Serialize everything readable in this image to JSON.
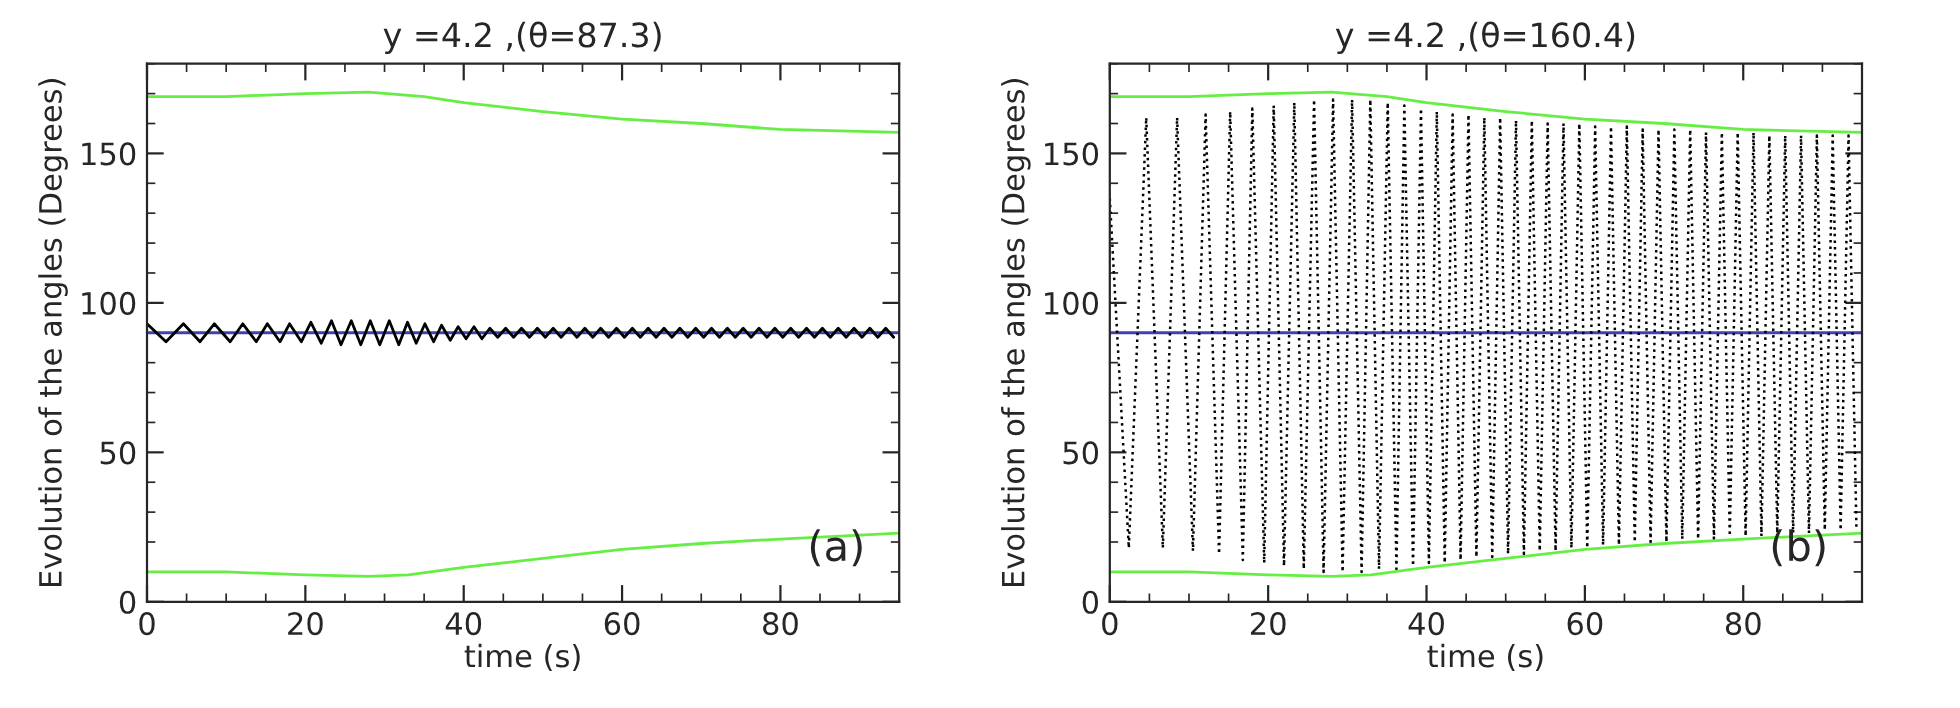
{
  "chart_data": [
    {
      "type": "line",
      "title": "y =4.2 ,(θ=87.3)",
      "xlabel": "time (s)",
      "ylabel": "Evolution of the angles (Degrees)",
      "xlim": [
        0,
        95
      ],
      "ylim": [
        0,
        180
      ],
      "xticks": [
        0,
        20,
        40,
        60,
        80
      ],
      "yticks": [
        0,
        50,
        100,
        150
      ],
      "grid": false,
      "marker": "none",
      "annotations": [
        "(a)"
      ],
      "ref_lines": [
        {
          "axis": "y",
          "value": 90,
          "color": "#4040b0"
        }
      ],
      "series": [
        {
          "color": "#66ee44",
          "x": [
            0,
            10,
            20,
            28,
            35,
            40,
            50,
            60,
            70,
            80,
            95
          ],
          "values": [
            169,
            169,
            170,
            170.5,
            169,
            167,
            164,
            161.5,
            160,
            158,
            157
          ]
        },
        {
          "color": "#66ee44",
          "x": [
            0,
            10,
            20,
            28,
            33,
            40,
            50,
            60,
            70,
            80,
            95
          ],
          "values": [
            10,
            10,
            9,
            8.5,
            9,
            11.5,
            14.5,
            17.5,
            19.5,
            21,
            23
          ]
        },
        {
          "color": "#000000",
          "line_style": "solid",
          "x": [
            0,
            2.4,
            4.6,
            6.7,
            8.5,
            10.5,
            12.1,
            13.8,
            15.2,
            16.8,
            18.0,
            19.5,
            20.7,
            22.0,
            23.3,
            24.5,
            25.8,
            27.0,
            28.2,
            29.4,
            30.6,
            31.8,
            32.9,
            34.0,
            35.1,
            36.2,
            37.2,
            38.3,
            39.3,
            40.3,
            41.3,
            42.3,
            43.3,
            44.3,
            45.3,
            46.3,
            47.3,
            48.3,
            49.3,
            50.3,
            51.3,
            52.3,
            53.3,
            54.3,
            55.3,
            56.3,
            57.3,
            58.3,
            59.3,
            60.3,
            61.3,
            62.3,
            63.3,
            64.3,
            65.3,
            66.3,
            67.3,
            68.3,
            69.3,
            70.3,
            71.3,
            72.3,
            73.3,
            74.3,
            75.3,
            76.3,
            77.3,
            78.3,
            79.3,
            80.3,
            81.3,
            82.3,
            83.3,
            84.3,
            85.3,
            86.3,
            87.3,
            88.3,
            89.3,
            90.3,
            91.3,
            92.3,
            93.3,
            94.3
          ],
          "values": [
            93,
            87,
            93,
            87,
            93,
            87,
            93,
            87,
            93,
            87,
            93,
            87,
            93.5,
            86.5,
            94,
            86,
            94,
            86,
            94,
            86,
            94,
            86,
            93.5,
            86.5,
            93,
            87,
            92.5,
            87.5,
            92,
            88,
            92,
            88,
            91.5,
            88.5,
            91.5,
            88.5,
            91.5,
            88.5,
            91.5,
            88.5,
            91.5,
            88.5,
            91.5,
            88.5,
            91.5,
            88.5,
            91.5,
            88.5,
            91.5,
            88.5,
            91.5,
            88.5,
            91.5,
            88.5,
            91.5,
            88.5,
            91.5,
            88.5,
            91.5,
            88.5,
            91.5,
            88.5,
            91.5,
            88.5,
            91.5,
            88.5,
            91.5,
            88.5,
            91.5,
            88.5,
            91.5,
            88.5,
            91.5,
            88.5,
            91.5,
            88.5,
            91.5,
            88.5,
            91.5,
            88.5,
            91.5,
            88.5,
            91.5,
            88.5
          ]
        }
      ]
    },
    {
      "type": "line",
      "title": "y =4.2 ,(θ=160.4)",
      "xlabel": "time (s)",
      "ylabel": "Evolution of the angles (Degrees)",
      "xlim": [
        0,
        95
      ],
      "ylim": [
        0,
        180
      ],
      "xticks": [
        0,
        20,
        40,
        60,
        80
      ],
      "yticks": [
        0,
        50,
        100,
        150
      ],
      "grid": false,
      "marker": "none",
      "annotations": [
        "(b)"
      ],
      "ref_lines": [
        {
          "axis": "y",
          "value": 90,
          "color": "#4040b0"
        }
      ],
      "series": [
        {
          "color": "#000000",
          "line_style": "dotted",
          "x": [
            0,
            2.4,
            4.6,
            6.7,
            8.5,
            10.5,
            12.1,
            13.8,
            15.2,
            16.8,
            18.0,
            19.5,
            20.7,
            22.0,
            23.3,
            24.5,
            25.8,
            27.0,
            28.2,
            29.4,
            30.6,
            31.8,
            32.9,
            34.0,
            35.1,
            36.2,
            37.2,
            38.3,
            39.3,
            40.3,
            41.3,
            42.3,
            43.3,
            44.3,
            45.3,
            46.3,
            47.3,
            48.3,
            49.3,
            50.3,
            51.3,
            52.3,
            53.3,
            54.3,
            55.3,
            56.3,
            57.3,
            58.3,
            59.3,
            60.3,
            61.3,
            62.3,
            63.3,
            64.3,
            65.3,
            66.3,
            67.3,
            68.3,
            69.3,
            70.3,
            71.3,
            72.3,
            73.3,
            74.3,
            75.3,
            76.3,
            77.3,
            78.3,
            79.3,
            80.3,
            81.3,
            82.3,
            83.3,
            84.3,
            85.3,
            86.3,
            87.3,
            88.3,
            89.3,
            90.3,
            91.3,
            92.3,
            93.3,
            94.3
          ],
          "values": [
            135,
            18,
            162,
            18,
            162,
            17,
            163,
            16,
            164,
            14,
            165,
            13,
            166,
            12,
            167,
            11,
            168,
            10,
            168,
            10,
            168,
            10,
            168,
            11,
            167,
            11,
            166,
            12,
            165,
            13,
            164,
            13,
            163,
            14,
            163,
            15,
            162,
            15,
            162,
            16,
            161,
            16,
            161,
            17,
            160,
            17,
            160,
            18,
            160,
            18,
            159,
            19,
            159,
            19,
            159,
            20,
            158,
            20,
            158,
            20,
            158,
            21,
            158,
            21,
            157,
            21,
            157,
            22,
            157,
            22,
            157,
            22,
            156,
            23,
            156,
            23,
            156,
            23,
            156,
            24,
            156,
            24,
            156,
            24
          ]
        },
        {
          "color": "#66ee44",
          "x": [
            0,
            10,
            20,
            28,
            35,
            40,
            50,
            60,
            70,
            80,
            95
          ],
          "values": [
            169,
            169,
            170,
            170.5,
            169,
            167,
            164,
            161.5,
            160,
            158,
            157
          ]
        },
        {
          "color": "#66ee44",
          "x": [
            0,
            10,
            20,
            28,
            33,
            40,
            50,
            60,
            70,
            80,
            95
          ],
          "values": [
            10,
            10,
            9,
            8.5,
            9,
            11.5,
            14.5,
            17.5,
            19.5,
            21,
            23
          ]
        }
      ]
    }
  ]
}
